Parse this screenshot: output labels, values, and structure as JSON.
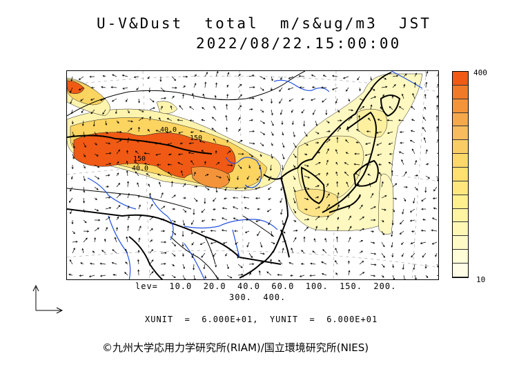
{
  "title": {
    "line1": "U-V&Dust  total  m/s&ug/m3  JST",
    "line2": "2022/08/22.15:00:00"
  },
  "colorbar": {
    "max_label": "400",
    "min_label": "10",
    "colors": [
      "#f05a14",
      "#f07a28",
      "#f4943a",
      "#f6a84c",
      "#f8bc5e",
      "#facc66",
      "#fcd86a",
      "#fde070",
      "#fee87e",
      "#fff08e",
      "#fff4a2",
      "#fff8b4",
      "#fffac6",
      "#fffcd8",
      "#fffde6"
    ]
  },
  "levels": {
    "line1": "lev=  10.0  20.0  40.0  60.0  100.  150.  200.",
    "line2": "300.  400."
  },
  "contour_labels": [
    "40.0",
    "150",
    "150",
    "40.0"
  ],
  "units": "XUNIT  =  6.000E+01,  YUNIT  =  6.000E+01",
  "copyright": "©九州大学応用力学研究所(RIAM)/国立環境研究所(NIES)",
  "colors": {
    "high": "#f05a14",
    "mid": "#facc66",
    "low": "#fff8c0",
    "coast": "#000000",
    "river": "#2050e0"
  },
  "icons": [
    "axes-icon"
  ]
}
